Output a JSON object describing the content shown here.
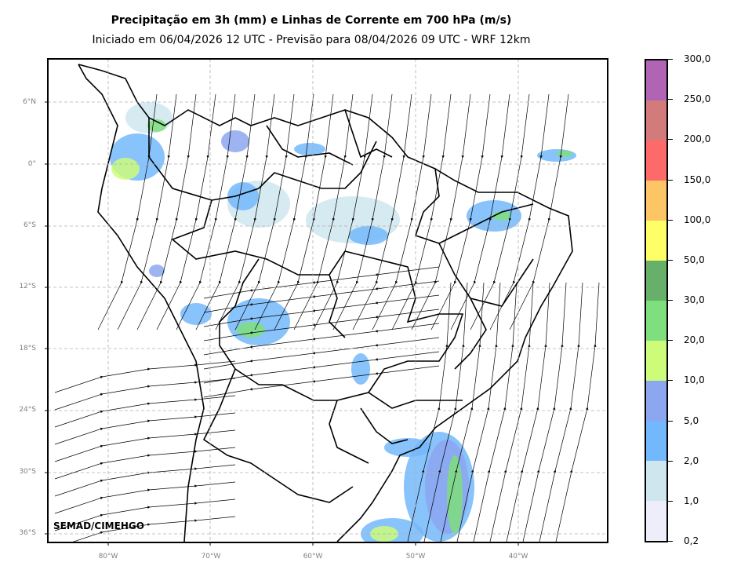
{
  "title": "Precipitação em 3h (mm) e Linhas de Corrente em 700 hPa (m/s)",
  "subtitle": "Iniciado em 06/04/2026 12 UTC - Previsão para 08/04/2026 09 UTC - WRF 12km",
  "credit": "SEMAD/CIMEHGO",
  "map": {
    "lat_labels": [
      "6°N",
      "0°",
      "6°S",
      "12°S",
      "18°S",
      "24°S",
      "30°S",
      "36°S"
    ],
    "lon_labels": [
      "80°W",
      "70°W",
      "60°W",
      "50°W",
      "40°W"
    ],
    "grid": "dashed",
    "frame_color": "#000000",
    "gridline_color": "#b0b0b0"
  },
  "colorbar": {
    "labels": [
      "0,2",
      "1,0",
      "2,0",
      "5,0",
      "10,0",
      "20,0",
      "30,0",
      "50,0",
      "100,0",
      "150,0",
      "200,0",
      "250,0",
      "300,0"
    ],
    "colors": [
      "#eeeefa",
      "#cfe6ef",
      "#73b8fc",
      "#8da6f0",
      "#ccfc7a",
      "#7fde7d",
      "#66b06a",
      "#fefe66",
      "#fec566",
      "#fe6a6a",
      "#d37b7a",
      "#b164b4"
    ]
  }
}
